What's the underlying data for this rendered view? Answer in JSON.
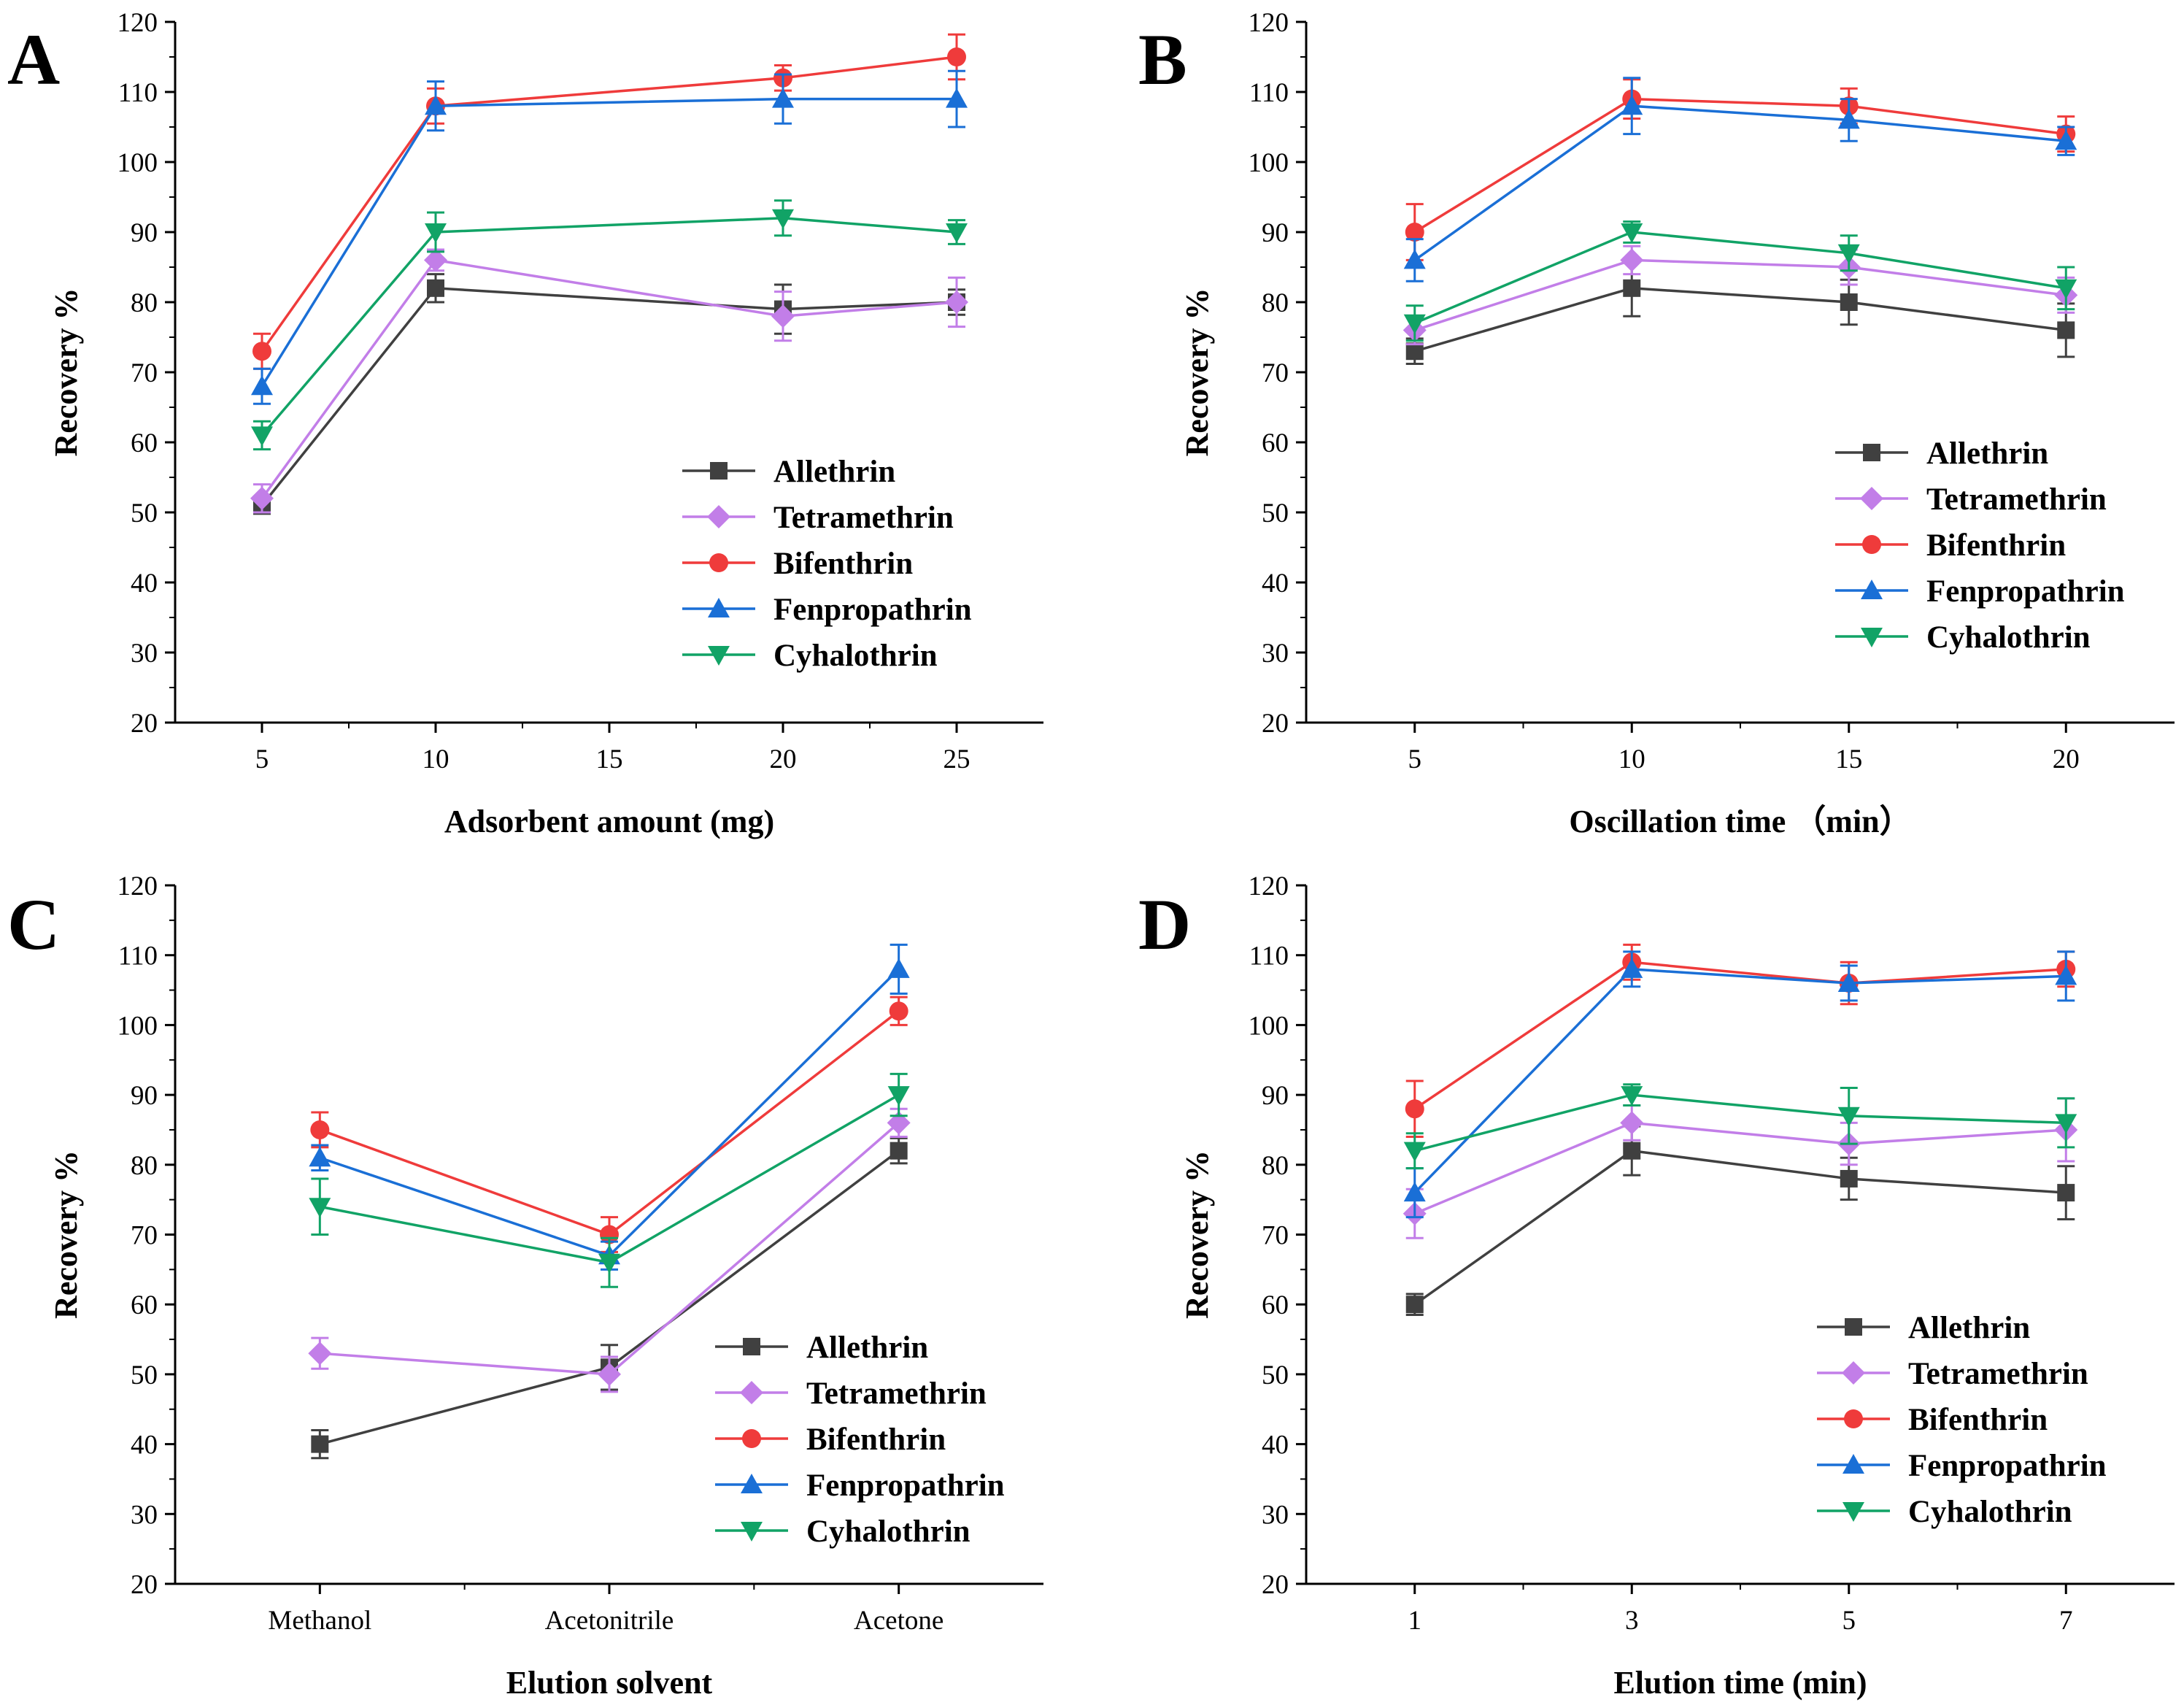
{
  "series_colors": {
    "Allethrin": "#404040",
    "Tetramethrin": "#c27ee8",
    "Bifenthrin": "#ef3b3b",
    "Fenpropathrin": "#1a6fd6",
    "Cyhalothrin": "#11a366"
  },
  "chart_data": [
    {
      "panel": "A",
      "type": "line",
      "xlabel": "Adsorbent amount (mg)",
      "ylabel": "Recovery %",
      "xlim": [
        2.5,
        27.5
      ],
      "ylim": [
        20,
        120
      ],
      "xticks": [
        5,
        10,
        15,
        20,
        25
      ],
      "xtick_labels": [
        "5",
        "10",
        "15",
        "20",
        "25"
      ],
      "yticks": [
        20,
        30,
        40,
        50,
        60,
        70,
        80,
        90,
        100,
        110,
        120
      ],
      "ytick_labels": [
        "20",
        "30",
        "40",
        "50",
        "60",
        "70",
        "80",
        "90",
        "100",
        "110",
        "120"
      ],
      "legend_position": "bottom-right",
      "x": [
        5,
        10,
        20,
        25
      ],
      "series": [
        {
          "name": "Allethrin",
          "marker": "square",
          "values": [
            51,
            82,
            79,
            80
          ],
          "errors": [
            1.2,
            2,
            3.5,
            1.8
          ]
        },
        {
          "name": "Tetramethrin",
          "marker": "diamond",
          "values": [
            52,
            86,
            78,
            80
          ],
          "errors": [
            2,
            1.5,
            3.5,
            3.5
          ]
        },
        {
          "name": "Bifenthrin",
          "marker": "circle",
          "values": [
            73,
            108,
            112,
            115
          ],
          "errors": [
            2.5,
            2.5,
            1.8,
            3.2
          ]
        },
        {
          "name": "Fenpropathrin",
          "marker": "triangle-up",
          "values": [
            68,
            108,
            109,
            109
          ],
          "errors": [
            2.5,
            3.5,
            3.5,
            4
          ]
        },
        {
          "name": "Cyhalothrin",
          "marker": "triangle-down",
          "values": [
            61,
            90,
            92,
            90
          ],
          "errors": [
            2,
            2.8,
            2.5,
            1.7
          ]
        }
      ]
    },
    {
      "panel": "B",
      "type": "line",
      "xlabel": "Oscillation time （min）",
      "ylabel": "Recovery %",
      "xlim": [
        2.5,
        22.5
      ],
      "ylim": [
        20,
        120
      ],
      "xticks": [
        5,
        10,
        15,
        20
      ],
      "xtick_labels": [
        "5",
        "10",
        "15",
        "20"
      ],
      "yticks": [
        20,
        30,
        40,
        50,
        60,
        70,
        80,
        90,
        100,
        110,
        120
      ],
      "ytick_labels": [
        "20",
        "30",
        "40",
        "50",
        "60",
        "70",
        "80",
        "90",
        "100",
        "110",
        "120"
      ],
      "legend_position": "middle-right",
      "x": [
        5,
        10,
        15,
        20
      ],
      "series": [
        {
          "name": "Allethrin",
          "marker": "square",
          "values": [
            73,
            82,
            80,
            76
          ],
          "errors": [
            1.8,
            4,
            3.2,
            3.8
          ]
        },
        {
          "name": "Tetramethrin",
          "marker": "diamond",
          "values": [
            76,
            86,
            85,
            81
          ],
          "errors": [
            2,
            2,
            2.5,
            2.5
          ]
        },
        {
          "name": "Bifenthrin",
          "marker": "circle",
          "values": [
            90,
            109,
            108,
            104
          ],
          "errors": [
            4,
            2.8,
            2.5,
            2.5
          ]
        },
        {
          "name": "Fenpropathrin",
          "marker": "triangle-up",
          "values": [
            86,
            108,
            106,
            103
          ],
          "errors": [
            3,
            4,
            3,
            2
          ]
        },
        {
          "name": "Cyhalothrin",
          "marker": "triangle-down",
          "values": [
            77,
            90,
            87,
            82
          ],
          "errors": [
            2.5,
            1.5,
            2.5,
            3
          ]
        }
      ]
    },
    {
      "panel": "C",
      "type": "line",
      "xlabel": "Elution solvent",
      "ylabel": "Recovery %",
      "xlim": [
        -0.5,
        2.5
      ],
      "ylim": [
        20,
        120
      ],
      "xticks": [
        0,
        1,
        2
      ],
      "xtick_labels": [
        "Methanol",
        "Acetonitrile",
        "Acetone"
      ],
      "yticks": [
        20,
        30,
        40,
        50,
        60,
        70,
        80,
        90,
        100,
        110,
        120
      ],
      "ytick_labels": [
        "20",
        "30",
        "40",
        "50",
        "60",
        "70",
        "80",
        "90",
        "100",
        "110",
        "120"
      ],
      "legend_position": "bottom-right",
      "x": [
        0,
        1,
        2
      ],
      "series": [
        {
          "name": "Allethrin",
          "marker": "square",
          "values": [
            40,
            51,
            82
          ],
          "errors": [
            2,
            3.2,
            1.8
          ]
        },
        {
          "name": "Tetramethrin",
          "marker": "diamond",
          "values": [
            53,
            50,
            86
          ],
          "errors": [
            2.2,
            2.5,
            2
          ]
        },
        {
          "name": "Bifenthrin",
          "marker": "circle",
          "values": [
            85,
            70,
            102
          ],
          "errors": [
            2.5,
            2.5,
            2
          ]
        },
        {
          "name": "Fenpropathrin",
          "marker": "triangle-up",
          "values": [
            81,
            67,
            108
          ],
          "errors": [
            1.8,
            2,
            3.5
          ]
        },
        {
          "name": "Cyhalothrin",
          "marker": "triangle-down",
          "values": [
            74,
            66,
            90
          ],
          "errors": [
            4,
            3.5,
            3
          ]
        }
      ]
    },
    {
      "panel": "D",
      "type": "line",
      "xlabel": "Elution time (min)",
      "ylabel": "Recovery %",
      "xlim": [
        0,
        8
      ],
      "ylim": [
        20,
        120
      ],
      "xticks": [
        1,
        3,
        5,
        7
      ],
      "xtick_labels": [
        "1",
        "3",
        "5",
        "7"
      ],
      "yticks": [
        20,
        30,
        40,
        50,
        60,
        70,
        80,
        90,
        100,
        110,
        120
      ],
      "ytick_labels": [
        "20",
        "30",
        "40",
        "50",
        "60",
        "70",
        "80",
        "90",
        "100",
        "110",
        "120"
      ],
      "legend_position": "bottom-right",
      "x": [
        1,
        3,
        5,
        7
      ],
      "series": [
        {
          "name": "Allethrin",
          "marker": "square",
          "values": [
            60,
            82,
            78,
            76
          ],
          "errors": [
            1.5,
            3.5,
            3,
            3.8
          ]
        },
        {
          "name": "Tetramethrin",
          "marker": "diamond",
          "values": [
            73,
            86,
            83,
            85
          ],
          "errors": [
            3.5,
            2.5,
            3,
            4.5
          ]
        },
        {
          "name": "Bifenthrin",
          "marker": "circle",
          "values": [
            88,
            109,
            106,
            108
          ],
          "errors": [
            4,
            2.5,
            3,
            2.5
          ]
        },
        {
          "name": "Fenpropathrin",
          "marker": "triangle-up",
          "values": [
            76,
            108,
            106,
            107
          ],
          "errors": [
            3.5,
            2.5,
            2.5,
            3.5
          ]
        },
        {
          "name": "Cyhalothrin",
          "marker": "triangle-down",
          "values": [
            82,
            90,
            87,
            86
          ],
          "errors": [
            2.5,
            1.5,
            4,
            3.5
          ]
        }
      ]
    }
  ]
}
